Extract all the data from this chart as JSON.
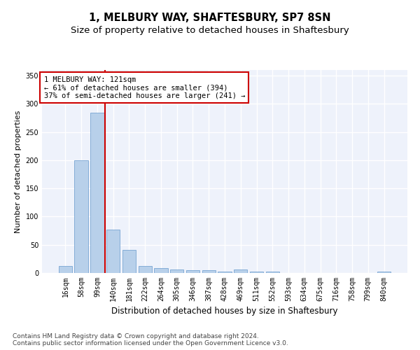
{
  "title": "1, MELBURY WAY, SHAFTESBURY, SP7 8SN",
  "subtitle": "Size of property relative to detached houses in Shaftesbury",
  "xlabel": "Distribution of detached houses by size in Shaftesbury",
  "ylabel": "Number of detached properties",
  "bar_labels": [
    "16sqm",
    "58sqm",
    "99sqm",
    "140sqm",
    "181sqm",
    "222sqm",
    "264sqm",
    "305sqm",
    "346sqm",
    "387sqm",
    "428sqm",
    "469sqm",
    "511sqm",
    "552sqm",
    "593sqm",
    "634sqm",
    "675sqm",
    "716sqm",
    "758sqm",
    "799sqm",
    "840sqm"
  ],
  "bar_values": [
    12,
    200,
    284,
    77,
    41,
    13,
    9,
    6,
    5,
    5,
    3,
    6,
    3,
    2,
    0,
    0,
    0,
    0,
    0,
    0,
    2
  ],
  "bar_color": "#b8d0ea",
  "bar_edge_color": "#6699cc",
  "background_color": "#eef2fb",
  "grid_color": "#ffffff",
  "annotation_text": "1 MELBURY WAY: 121sqm\n← 61% of detached houses are smaller (394)\n37% of semi-detached houses are larger (241) →",
  "vline_x_index": 2.5,
  "vline_color": "#cc0000",
  "annotation_box_color": "#ffffff",
  "annotation_box_edge": "#cc0000",
  "ylim": [
    0,
    360
  ],
  "yticks": [
    0,
    50,
    100,
    150,
    200,
    250,
    300,
    350
  ],
  "footer": "Contains HM Land Registry data © Crown copyright and database right 2024.\nContains public sector information licensed under the Open Government Licence v3.0.",
  "title_fontsize": 10.5,
  "subtitle_fontsize": 9.5,
  "xlabel_fontsize": 8.5,
  "ylabel_fontsize": 8,
  "tick_fontsize": 7,
  "footer_fontsize": 6.5,
  "annot_fontsize": 7.5
}
